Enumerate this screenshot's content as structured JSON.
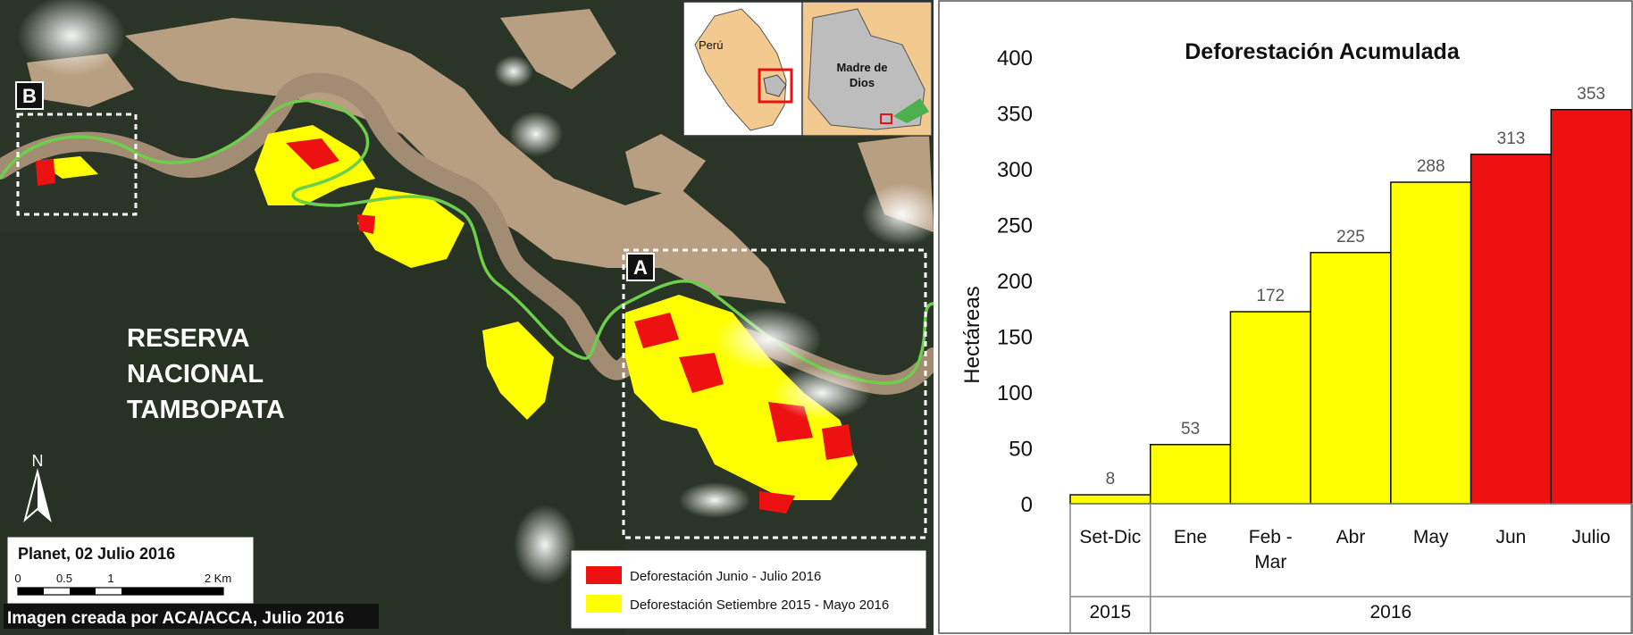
{
  "map": {
    "reserve_label": [
      "RESERVA",
      "NACIONAL",
      "TAMBOPATA"
    ],
    "zone_a": "A",
    "zone_b": "B",
    "north": "N",
    "scale_title": "Planet, 02 Julio 2016",
    "scale_ticks": [
      "0",
      "0.5",
      "1",
      "2 Km"
    ],
    "credit": "Imagen creada por ACA/ACCA, Julio 2016",
    "inset_peru": "Perú",
    "inset_region": [
      "Madre de",
      "Dios"
    ],
    "legend": [
      {
        "label": "Deforestación Junio - Julio 2016",
        "color": "#ee1111"
      },
      {
        "label": "Deforestación Setiembre 2015 - Mayo 2016",
        "color": "#ffff00"
      }
    ]
  },
  "chart_data": {
    "type": "bar",
    "title": "Deforestación Acumulada",
    "ylabel": "Hectáreas",
    "ylim": [
      0,
      400
    ],
    "yticks": [
      0,
      50,
      100,
      150,
      200,
      250,
      300,
      350,
      400
    ],
    "categories": [
      "Set-Dic",
      "Ene",
      "Feb - Mar",
      "Abr",
      "May",
      "Jun",
      "Julio"
    ],
    "values": [
      8,
      53,
      172,
      225,
      288,
      313,
      353
    ],
    "colors": [
      "#ffff00",
      "#ffff00",
      "#ffff00",
      "#ffff00",
      "#ffff00",
      "#ee1111",
      "#ee1111"
    ],
    "groups": [
      {
        "label": "2015",
        "span": [
          0,
          0
        ]
      },
      {
        "label": "2016",
        "span": [
          1,
          6
        ]
      }
    ]
  }
}
